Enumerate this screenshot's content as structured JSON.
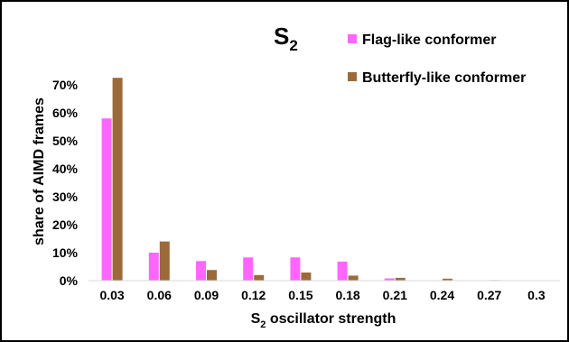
{
  "chart_data": {
    "type": "bar",
    "title_main": "S",
    "title_sub": "2",
    "xlabel_prefix": "S",
    "xlabel_sub": "2",
    "xlabel_rest": " oscillator strength",
    "ylabel": "share of AIMD frames",
    "categories": [
      "0.03",
      "0.06",
      "0.09",
      "0.12",
      "0.15",
      "0.18",
      "0.21",
      "0.24",
      "0.27",
      "0.3"
    ],
    "y_ticks": [
      "0%",
      "10%",
      "20%",
      "30%",
      "40%",
      "50%",
      "60%",
      "70%"
    ],
    "ylim": [
      0,
      75
    ],
    "legend_position": "top-right",
    "series": [
      {
        "name": "Flag-like conformer",
        "color": "#ff66ff",
        "values": [
          58,
          10,
          7,
          8.3,
          8.3,
          6.8,
          0.8,
          0.1,
          0.1,
          0
        ]
      },
      {
        "name": "Butterfly-like conformer",
        "color": "#9c6a3a",
        "values": [
          72.5,
          14,
          3.8,
          2,
          2.9,
          1.8,
          1,
          0.7,
          0.2,
          0
        ]
      }
    ]
  }
}
